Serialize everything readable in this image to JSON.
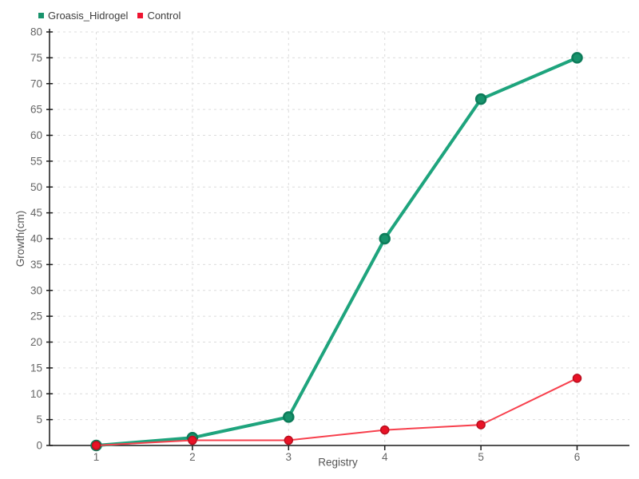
{
  "legend": {
    "items": [
      {
        "label": "Groasis_Hidrogel",
        "color": "#18936c"
      },
      {
        "label": "Control",
        "color": "#ee1430"
      }
    ]
  },
  "chart_data": {
    "type": "line",
    "title": "",
    "xlabel": "Registry",
    "ylabel": "Growth(cm)",
    "x": [
      1,
      2,
      3,
      4,
      5,
      6
    ],
    "series": [
      {
        "name": "Groasis_Hidrogel",
        "values": [
          0,
          1.5,
          5.5,
          40,
          67,
          75
        ],
        "line_color": "#1ea47d",
        "line_width": 4,
        "marker_fill": "#18936c",
        "marker_stroke": "#0d7c5a",
        "marker_radius": 6,
        "marker_stroke_width": 2.5
      },
      {
        "name": "Control",
        "values": [
          0,
          1,
          1,
          3,
          4,
          13
        ],
        "line_color": "#f7404d",
        "line_width": 2,
        "marker_fill": "#e91226",
        "marker_stroke": "#b90e1e",
        "marker_radius": 5,
        "marker_stroke_width": 1.5
      }
    ],
    "ylim": [
      0,
      80
    ],
    "ytick_step": 5,
    "xticks": [
      1,
      2,
      3,
      4,
      5,
      6
    ],
    "grid": true,
    "grid_style": "dashed",
    "legend_position": "top-left"
  },
  "colors": {
    "background": "#ffffff",
    "grid": "#dcdcdc",
    "axis": "#1a1a1a",
    "tick_label": "#666666",
    "axis_title": "#555555",
    "legend_text": "#3d3d3d"
  }
}
